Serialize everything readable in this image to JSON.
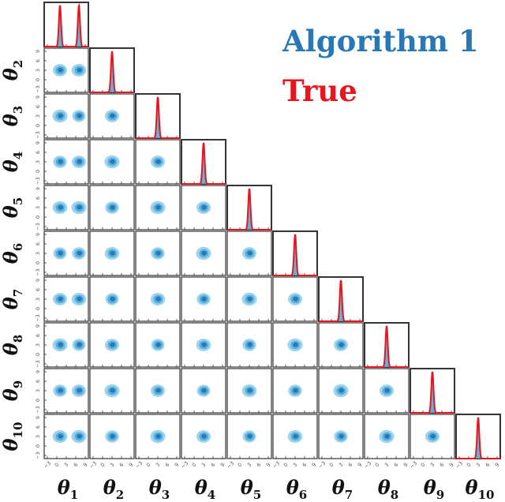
{
  "chart_data": {
    "type": "corner-plot",
    "params": [
      "θ1",
      "θ2",
      "θ3",
      "θ4",
      "θ5",
      "θ6",
      "θ7",
      "θ8",
      "θ9",
      "θ10"
    ],
    "param_labels": [
      {
        "base": "θ",
        "sub": "1"
      },
      {
        "base": "θ",
        "sub": "2"
      },
      {
        "base": "θ",
        "sub": "3"
      },
      {
        "base": "θ",
        "sub": "4"
      },
      {
        "base": "θ",
        "sub": "5"
      },
      {
        "base": "θ",
        "sub": "6"
      },
      {
        "base": "θ",
        "sub": "7"
      },
      {
        "base": "θ",
        "sub": "8"
      },
      {
        "base": "θ",
        "sub": "9"
      },
      {
        "base": "θ",
        "sub": "10"
      }
    ],
    "axis_range": [
      -4,
      10
    ],
    "tick_values": [
      -3,
      0,
      3,
      6,
      9
    ],
    "tick_labels": [
      "−3",
      "0",
      "3",
      "6",
      "9"
    ],
    "legend": [
      {
        "label": "Algorithm 1",
        "color": "#2878b5"
      },
      {
        "label": "True",
        "color": "#e8141e"
      }
    ],
    "marginals": {
      "theta1_modes": [
        1.0,
        7.0
      ],
      "others_mode": 3.0,
      "sd": 0.35
    },
    "joint_center_others": 3.0,
    "joint_theta1_centers": [
      1.0,
      7.0
    ],
    "colors": {
      "contour_light": "#9ed4ee",
      "contour_mid": "#58b2df",
      "contour_dark": "#2d78b4",
      "hist_fill": "#5aa8d8",
      "true_line": "#e8141e",
      "frame": "#333333"
    }
  }
}
